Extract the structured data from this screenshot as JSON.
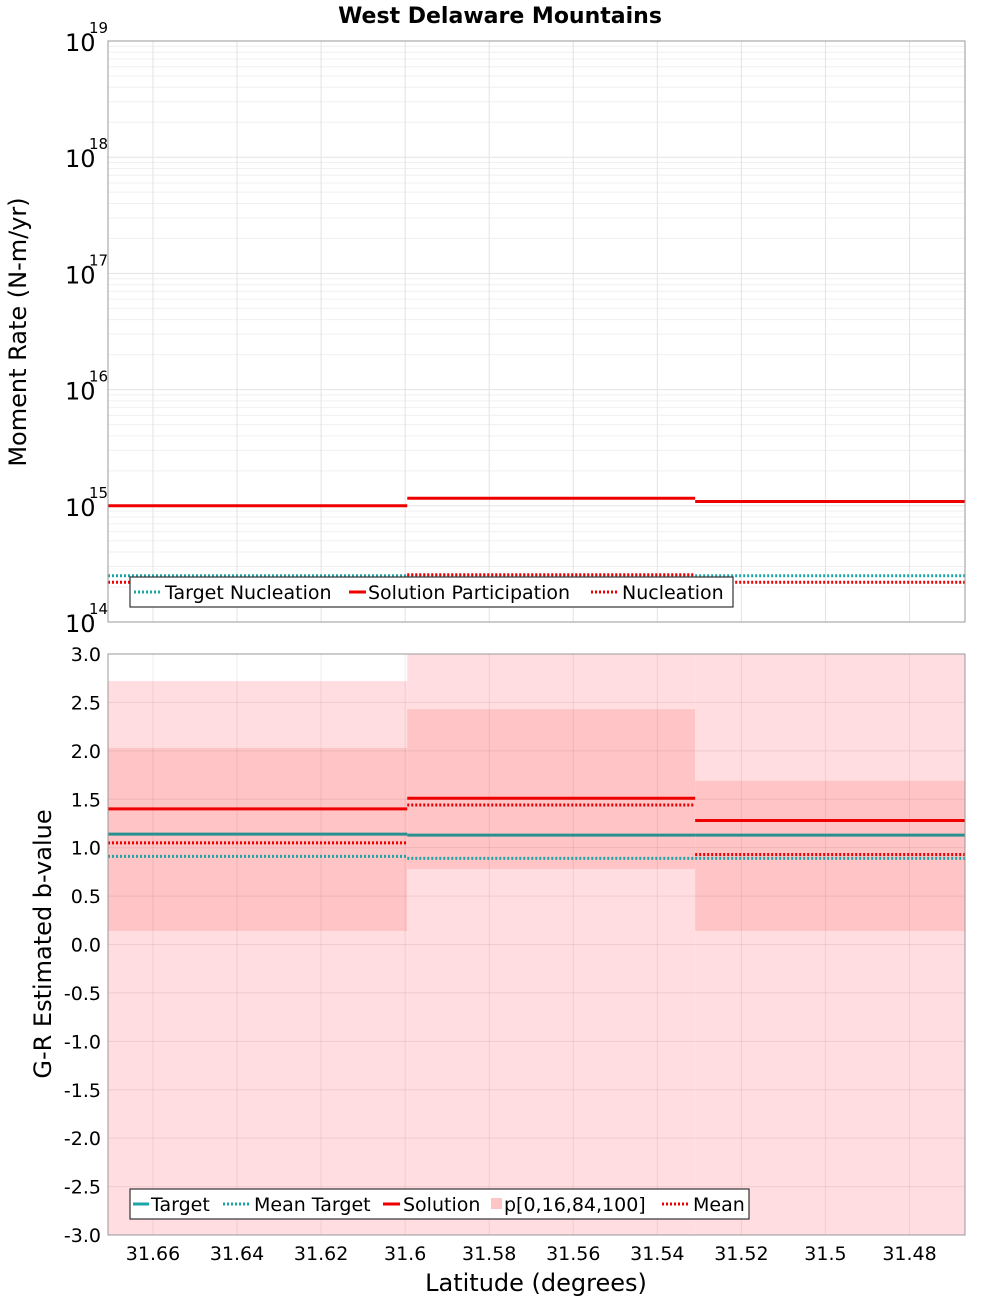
{
  "title": "West Delaware Mountains",
  "colors": {
    "target": "#1aa6a6",
    "solution": "#ee0000",
    "band_outer": "#ffdde0",
    "band_inner": "#ffc4c6",
    "grid": "#e3e3e3"
  },
  "chart_data": [
    {
      "type": "line",
      "name": "moment-rate",
      "ylabel": "Moment Rate (N-m/yr)",
      "xlabel": "",
      "xlim": [
        31.6707,
        31.4668
      ],
      "yscale": "log",
      "ylim_exp": [
        14,
        19
      ],
      "ytick_base": "10",
      "ytick_exponents": [
        "14",
        "15",
        "16",
        "17",
        "18",
        "19"
      ],
      "bins": [
        [
          31.6707,
          31.5995
        ],
        [
          31.5995,
          31.531
        ],
        [
          31.531,
          31.4668
        ]
      ],
      "series": [
        {
          "name": "Solution Participation",
          "style": "solid",
          "color": "#ee0000",
          "values": [
            1000000000000000.0,
            1160000000000000.0,
            1090000000000000.0
          ]
        },
        {
          "name": "Target Nucleation",
          "style": "dotted",
          "color": "#1aa6a6",
          "values": [
            250000000000000.0,
            250000000000000.0,
            250000000000000.0
          ]
        },
        {
          "name": "Nucleation",
          "style": "dotted",
          "color": "#ee0000",
          "values": [
            220000000000000.0,
            255000000000000.0,
            220000000000000.0
          ]
        }
      ],
      "legend": [
        "Target Nucleation",
        "Solution Participation",
        "Nucleation"
      ]
    },
    {
      "type": "line",
      "name": "b-value",
      "ylabel": "G-R Estimated b-value",
      "xlabel": "Latitude (degrees)",
      "xlim": [
        31.6707,
        31.4668
      ],
      "ylim": [
        -3.0,
        3.0
      ],
      "yticks": [
        "3.0",
        "2.5",
        "2.0",
        "1.5",
        "1.0",
        "0.5",
        "0.0",
        "-0.5",
        "-1.0",
        "-1.5",
        "-2.0",
        "-2.5",
        "-3.0"
      ],
      "xticks": [
        "31.66",
        "31.64",
        "31.62",
        "31.6",
        "31.58",
        "31.56",
        "31.54",
        "31.52",
        "31.5",
        "31.48"
      ],
      "bins": [
        [
          31.6707,
          31.5995
        ],
        [
          31.5995,
          31.531
        ],
        [
          31.531,
          31.4668
        ]
      ],
      "series": [
        {
          "name": "Target",
          "style": "solid",
          "color": "#2a8f8f",
          "values": [
            1.14,
            1.13,
            1.13
          ]
        },
        {
          "name": "Mean Target",
          "style": "dotted",
          "color": "#1aa6a6",
          "values": [
            0.91,
            0.89,
            0.89
          ]
        },
        {
          "name": "Solution",
          "style": "solid",
          "color": "#ee0000",
          "values": [
            1.4,
            1.51,
            1.28
          ]
        },
        {
          "name": "Mean",
          "style": "dotted",
          "color": "#ee0000",
          "values": [
            1.05,
            1.44,
            0.93
          ]
        }
      ],
      "bands": {
        "name": "p[0,16,84,100]",
        "p0": [
          -3.0,
          -3.0,
          -3.0
        ],
        "p16": [
          0.14,
          0.78,
          0.14
        ],
        "p84": [
          2.03,
          2.43,
          1.69
        ],
        "p100": [
          2.72,
          3.0,
          3.0
        ]
      },
      "legend": [
        "Target",
        "Mean Target",
        "Solution",
        "p[0,16,84,100]",
        "Mean"
      ]
    }
  ]
}
